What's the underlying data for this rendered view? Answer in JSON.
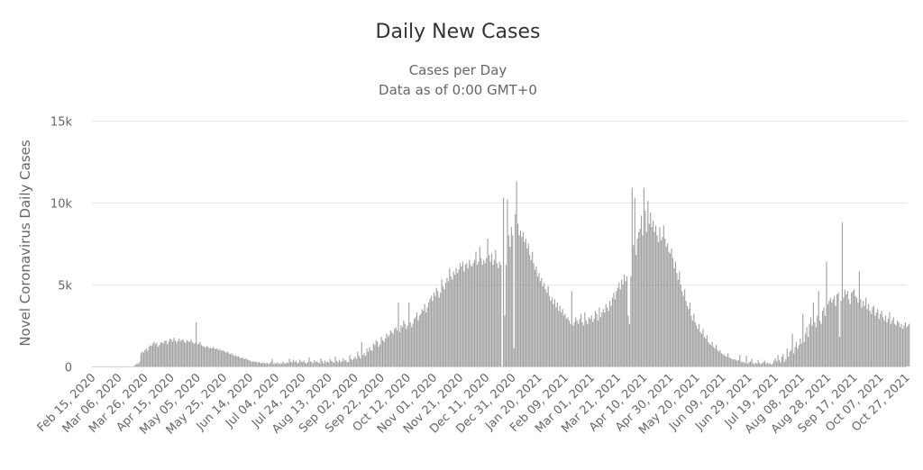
{
  "chart_data": {
    "type": "bar",
    "title": "Daily New Cases",
    "subtitle_lines": [
      "Cases per Day",
      "Data as of 0:00 GMT+0"
    ],
    "xlabel": "",
    "ylabel": "Novel Coronavirus Daily Cases",
    "ylim": [
      0,
      15000
    ],
    "y_ticks": [
      {
        "value": 0,
        "label": "0"
      },
      {
        "value": 5000,
        "label": "5k"
      },
      {
        "value": 10000,
        "label": "10k"
      },
      {
        "value": 15000,
        "label": "15k"
      }
    ],
    "grid": true,
    "legend": "none",
    "color": "#a0a0a0",
    "x_start_date": "2020-02-15",
    "x_tick_interval_days": 20,
    "x_tick_labels": [
      "Feb 15, 2020",
      "Mar 06, 2020",
      "Mar 26, 2020",
      "Apr 15, 2020",
      "May 05, 2020",
      "May 25, 2020",
      "Jun 14, 2020",
      "Jul 04, 2020",
      "Jul 24, 2020",
      "Aug 13, 2020",
      "Sep 02, 2020",
      "Sep 22, 2020",
      "Oct 12, 2020",
      "Nov 01, 2020",
      "Nov 21, 2020",
      "Dec 11, 2020",
      "Dec 31, 2020",
      "Jan 20, 2021",
      "Feb 09, 2021",
      "Mar 01, 2021",
      "Mar 21, 2021",
      "Apr 10, 2021",
      "Apr 30, 2021",
      "May 20, 2021",
      "Jun 09, 2021",
      "Jun 29, 2021",
      "Jul 19, 2021",
      "Aug 08, 2021",
      "Aug 28, 2021",
      "Sep 17, 2021",
      "Oct 07, 2021",
      "Oct 27, 2021"
    ],
    "values": [
      0,
      0,
      0,
      0,
      0,
      0,
      0,
      0,
      0,
      0,
      0,
      0,
      0,
      0,
      0,
      0,
      0,
      0,
      0,
      0,
      0,
      0,
      0,
      0,
      0,
      0,
      0,
      0,
      0,
      0,
      0,
      0,
      50,
      120,
      200,
      150,
      300,
      800,
      900,
      850,
      1000,
      1100,
      950,
      1200,
      1300,
      1250,
      1400,
      1500,
      1350,
      1450,
      1200,
      1300,
      1450,
      1500,
      1400,
      1550,
      1600,
      1350,
      1500,
      1700,
      1650,
      1500,
      1750,
      1600,
      1450,
      1550,
      1700,
      1550,
      1600,
      1650,
      1500,
      1450,
      1600,
      1550,
      1500,
      1650,
      1500,
      1400,
      1450,
      2700,
      1350,
      1400,
      1500,
      1300,
      1250,
      1200,
      1150,
      1250,
      1200,
      1100,
      1150,
      1100,
      1200,
      1100,
      1050,
      1100,
      1000,
      1050,
      950,
      1000,
      950,
      900,
      850,
      900,
      800,
      750,
      800,
      700,
      650,
      700,
      600,
      650,
      550,
      500,
      550,
      480,
      450,
      500,
      420,
      380,
      350,
      300,
      320,
      280,
      300,
      260,
      240,
      280,
      220,
      200,
      250,
      200,
      180,
      230,
      150,
      200,
      280,
      450,
      150,
      220,
      180,
      260,
      150,
      200,
      170,
      300,
      200,
      180,
      250,
      210,
      480,
      300,
      250,
      400,
      280,
      350,
      200,
      230,
      420,
      300,
      260,
      350,
      220,
      180,
      250,
      550,
      300,
      260,
      200,
      380,
      280,
      300,
      240,
      200,
      500,
      320,
      180,
      350,
      260,
      300,
      250,
      450,
      330,
      280,
      220,
      600,
      350,
      260,
      400,
      280,
      300,
      500,
      350,
      400,
      250,
      280,
      700,
      450,
      380,
      500,
      600,
      450,
      900,
      650,
      500,
      1500,
      700,
      800,
      650,
      1100,
      900,
      1200,
      1000,
      950,
      1400,
      1300,
      1600,
      1500,
      1200,
      1350,
      1800,
      1600,
      1500,
      1700,
      2000,
      1800,
      1900,
      2200,
      2100,
      2000,
      2300,
      2400,
      2200,
      3900,
      2100,
      2500,
      2400,
      2800,
      2600,
      2300,
      2500,
      3900,
      2700,
      2400,
      2600,
      2900,
      3000,
      3300,
      2800,
      3100,
      3200,
      3500,
      3400,
      3800,
      3300,
      3600,
      3900,
      4100,
      4300,
      4000,
      4500,
      4300,
      4800,
      4600,
      4200,
      4500,
      5300,
      4900,
      4700,
      5100,
      5400,
      5200,
      6000,
      5500,
      5300,
      5800,
      5600,
      6000,
      5700,
      5900,
      6300,
      6100,
      6400,
      5800,
      6200,
      6300,
      6000,
      6500,
      6200,
      6100,
      6300,
      6500,
      7000,
      6200,
      6400,
      7300,
      6600,
      6200,
      6500,
      6300,
      6600,
      7800,
      6800,
      6400,
      6900,
      6200,
      6500,
      7100,
      6300,
      6000,
      6400,
      6200,
      0,
      10300,
      3100,
      6200,
      10200,
      8000,
      7300,
      8500,
      8000,
      1100,
      9300,
      11300,
      8700,
      8000,
      8300,
      7900,
      8200,
      7600,
      7800,
      7200,
      7500,
      6800,
      6500,
      7000,
      6300,
      5900,
      6100,
      5500,
      5700,
      5200,
      5400,
      4900,
      5100,
      4700,
      4500,
      4900,
      4300,
      4000,
      4200,
      3800,
      4100,
      3600,
      3900,
      3400,
      3700,
      3300,
      3500,
      3100,
      3200,
      2900,
      3000,
      2800,
      2600,
      4600,
      2500,
      2700,
      3000,
      2800,
      2600,
      2900,
      3200,
      2700,
      2500,
      3300,
      2800,
      2600,
      3000,
      2900,
      3100,
      2700,
      2900,
      3400,
      3200,
      2800,
      3600,
      3000,
      3300,
      3500,
      3300,
      3800,
      3600,
      3400,
      4000,
      3700,
      4200,
      4500,
      4100,
      4600,
      4800,
      5100,
      4700,
      5300,
      5000,
      5600,
      5200,
      5500,
      3100,
      2600,
      5500,
      10900,
      7400,
      10300,
      6800,
      7800,
      8200,
      8400,
      9200,
      8000,
      10900,
      9500,
      8200,
      10100,
      8700,
      9400,
      8500,
      8900,
      8200,
      8600,
      8000,
      7600,
      8500,
      7700,
      7900,
      8600,
      7800,
      7300,
      7500,
      7000,
      6900,
      7200,
      6600,
      6000,
      6400,
      5700,
      5300,
      5800,
      5000,
      4600,
      4300,
      4700,
      4000,
      3700,
      3500,
      3900,
      3100,
      2800,
      3200,
      2700,
      2500,
      2300,
      2600,
      2100,
      2000,
      2300,
      1800,
      1700,
      1900,
      1500,
      1400,
      1300,
      1500,
      1200,
      1100,
      1300,
      1000,
      900,
      1000,
      800,
      750,
      700,
      650,
      600,
      800,
      550,
      500,
      450,
      420,
      450,
      400,
      350,
      380,
      700,
      300,
      250,
      280,
      200,
      650,
      180,
      250,
      300,
      450,
      200,
      150,
      230,
      180,
      400,
      220,
      150,
      200,
      280,
      350,
      170,
      250,
      150,
      200,
      120,
      180,
      350,
      500,
      300,
      700,
      400,
      250,
      600,
      750,
      300,
      450,
      1100,
      600,
      900,
      1000,
      2000,
      800,
      1200,
      1500,
      1100,
      1300,
      1700,
      1400,
      3200,
      1500,
      2000,
      2400,
      1800,
      2600,
      3000,
      2500,
      3900,
      2700,
      2400,
      3100,
      4600,
      2800,
      2600,
      3400,
      3600,
      3100,
      6400,
      3800,
      4000,
      4200,
      3900,
      4100,
      4300,
      3700,
      4400,
      4500,
      1800,
      4000,
      8800,
      4200,
      4700,
      4400,
      4600,
      4100,
      3800,
      4500,
      4600,
      4700,
      4300,
      4200,
      3900,
      5800,
      4100,
      3600,
      4000,
      3700,
      4200,
      3500,
      3800,
      3400,
      3200,
      3600,
      3700,
      3100,
      3300,
      3500,
      2900,
      3200,
      3400,
      3000,
      2800,
      3100,
      2700,
      2900,
      3300,
      2600,
      2800,
      3000,
      2600,
      2500,
      2800,
      2700,
      2400,
      2600,
      2300,
      2500,
      2700,
      2400,
      2500,
      2600
    ]
  }
}
